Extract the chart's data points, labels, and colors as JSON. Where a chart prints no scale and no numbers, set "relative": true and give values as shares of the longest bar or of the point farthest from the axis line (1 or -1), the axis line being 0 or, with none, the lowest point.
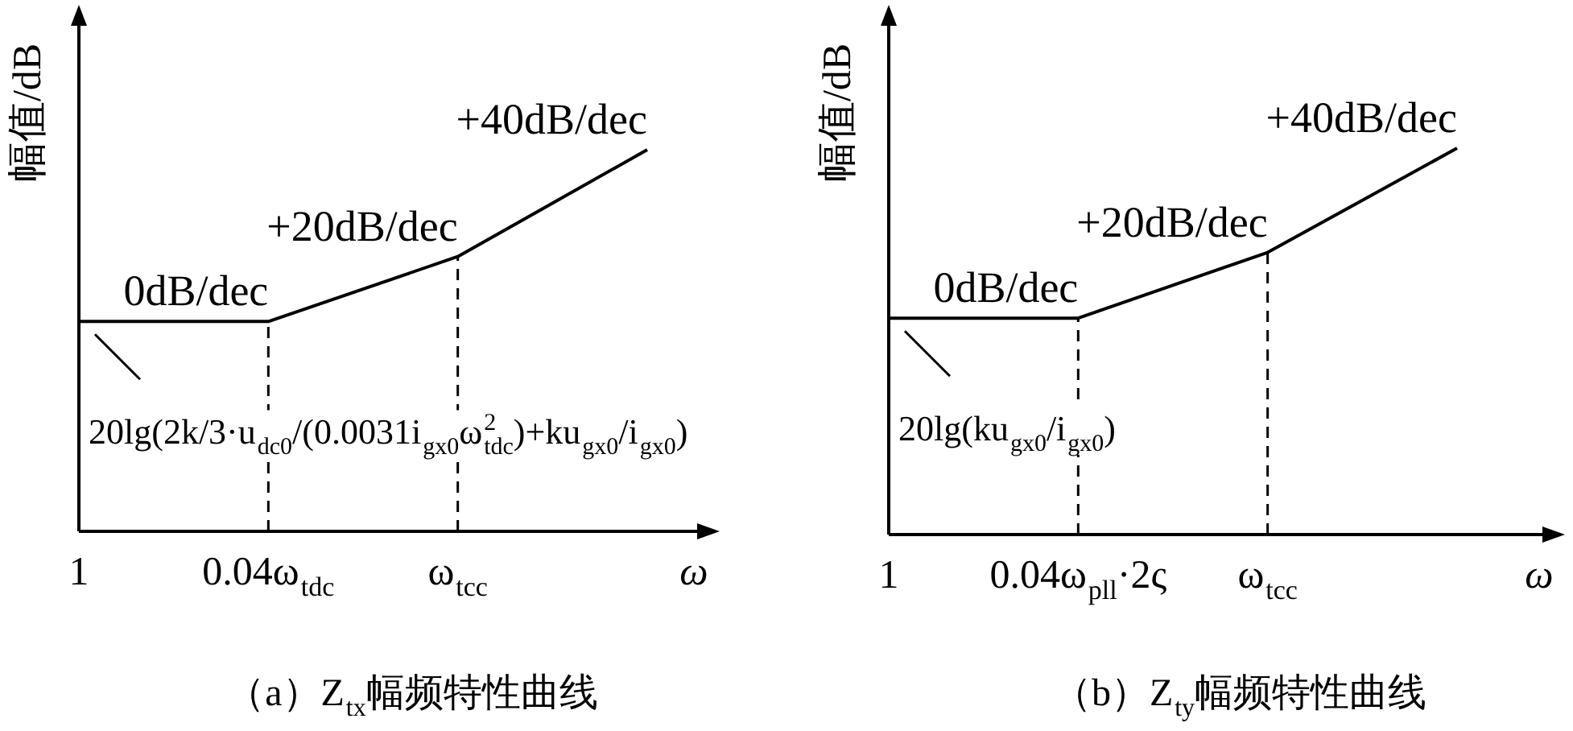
{
  "chart_data": [
    {
      "type": "line",
      "title": "（a）Z$_{tx}$幅频特性曲线",
      "xlabel": "ω",
      "ylabel": "幅值/dB",
      "relative": true,
      "categories": [
        "1",
        "0.04ω$_{tdc}$",
        "ω$_{tcc}$",
        null
      ],
      "values": [
        0.55,
        0.55,
        0.72,
        1
      ],
      "color": "#000000",
      "marker": "none",
      "line_style": "solid",
      "ref_lines": [
        {
          "axis": "x",
          "value": "0.04ω$_{tdc}$",
          "color": "#000000",
          "line_style": "dashed"
        },
        {
          "axis": "x",
          "value": "ω$_{tcc}$",
          "color": "#000000",
          "line_style": "dashed"
        }
      ],
      "annotations": [
        "0dB/dec",
        "+20dB/dec",
        "+40dB/dec",
        "20lg(2k/3·u$_{dc0}$/(0.0031i$_{gx0}$ω$_{tdc}$$^{2}$)+ku$_{gx0}$/i$_{gx0}$)"
      ]
    },
    {
      "type": "line",
      "title": "（b）Z$_{ty}$幅频特性曲线",
      "xlabel": "ω",
      "ylabel": "幅值/dB",
      "relative": true,
      "categories": [
        "1",
        "0.04ω$_{pll}$·2ς",
        "ω$_{tcc}$",
        null
      ],
      "values": [
        0.56,
        0.56,
        0.73,
        1
      ],
      "color": "#000000",
      "marker": "none",
      "line_style": "solid",
      "ref_lines": [
        {
          "axis": "x",
          "value": "0.04ω$_{pll}$·2ς",
          "color": "#000000",
          "line_style": "dashed"
        },
        {
          "axis": "x",
          "value": "ω$_{tcc}$",
          "color": "#000000",
          "line_style": "dashed"
        }
      ],
      "annotations": [
        "0dB/dec",
        "+20dB/dec",
        "+40dB/dec",
        "20lg(ku$_{gx0}$/i$_{gx0}$)"
      ]
    }
  ]
}
